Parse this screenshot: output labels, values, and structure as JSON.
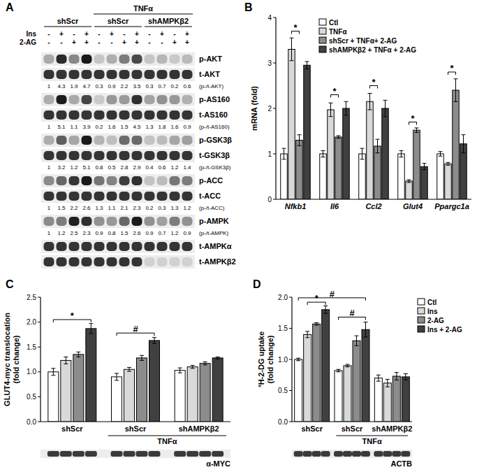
{
  "blot": {
    "label": "A",
    "treatment": {
      "label": "TNFα",
      "groups": [
        1,
        2
      ]
    },
    "groups": [
      "shScr",
      "shScr",
      "shAMPKβ2"
    ],
    "conditions": [
      {
        "name": "Ins",
        "signs": [
          "-",
          "+",
          "-",
          "+",
          "-",
          "+",
          "-",
          "+",
          "-",
          "+",
          "-",
          "+"
        ]
      },
      {
        "name": "2-AG",
        "signs": [
          "-",
          "-",
          "+",
          "+",
          "-",
          "-",
          "+",
          "+",
          "-",
          "-",
          "+",
          "+"
        ]
      }
    ],
    "rows": [
      {
        "type": "band",
        "label": "p-AKT"
      },
      {
        "type": "band",
        "label": "t-AKT"
      },
      {
        "type": "quant",
        "label": "(p-/t-AKT)",
        "values": [
          1,
          4.3,
          1.9,
          4.7,
          0.3,
          0.9,
          2.2,
          3.5,
          0.3,
          0.7,
          0.2,
          0.6
        ]
      },
      {
        "type": "band",
        "label": "p-AS160"
      },
      {
        "type": "band",
        "label": "t-AS160"
      },
      {
        "type": "quant",
        "label": "(p-/t-AS160)",
        "values": [
          1,
          5.1,
          1.1,
          3.9,
          0.2,
          1.6,
          1.5,
          4.5,
          1.3,
          1.8,
          1.6,
          0.9
        ]
      },
      {
        "type": "band",
        "label": "p-GSK3β"
      },
      {
        "type": "band",
        "label": "t-GSK3β"
      },
      {
        "type": "quant",
        "label": "(p-/t-GSK3β)",
        "values": [
          1,
          3.2,
          1.2,
          5.1,
          0.8,
          0.5,
          2.8,
          2.9,
          0.4,
          0.6,
          1.2,
          1.4
        ]
      },
      {
        "type": "band",
        "label": "p-ACC"
      },
      {
        "type": "band",
        "label": "t-ACC"
      },
      {
        "type": "quant",
        "label": "(p-/t-ACC)",
        "values": [
          1,
          1.5,
          2.2,
          2.6,
          1.3,
          1.1,
          2.1,
          2.3,
          0.2,
          0.3,
          1.3,
          1.2
        ]
      },
      {
        "type": "band",
        "label": "p-AMPK"
      },
      {
        "type": "quant",
        "label": "(p-/t-AMPK)",
        "values": [
          1,
          1.2,
          2.5,
          2.3,
          0.9,
          0.8,
          1.5,
          2.6,
          0.9,
          0.7,
          1.2,
          0.9
        ]
      },
      {
        "type": "band",
        "label": "t-AMPKα"
      },
      {
        "type": "band",
        "label": "t-AMPKβ2"
      }
    ]
  },
  "chart_data": [
    {
      "type": "bar",
      "label": "B",
      "ylabel": [
        "mRNA (fold)"
      ],
      "categories": [
        "Nfkb1",
        "Il6",
        "Ccl2",
        "Glut4",
        "Ppargc1a"
      ],
      "ylim": [
        0,
        4
      ],
      "yticks": [
        0,
        1,
        2,
        3,
        4
      ],
      "legend": "top",
      "series": [
        {
          "name": "Ctl",
          "color": "#ffffff",
          "values": [
            1.0,
            1.0,
            1.0,
            1.0,
            1.0
          ],
          "errors": [
            0.12,
            0.07,
            0.12,
            0.07,
            0.05
          ]
        },
        {
          "name": "TNFα",
          "color": "#d9d9d9",
          "values": [
            3.3,
            1.97,
            2.15,
            0.4,
            0.78
          ],
          "errors": [
            0.25,
            0.15,
            0.18,
            0.03,
            0.03
          ]
        },
        {
          "name": "shScr + TNFα+ 2-AG",
          "color": "#8c8c8c",
          "values": [
            1.3,
            1.37,
            1.17,
            1.52,
            2.4
          ],
          "errors": [
            0.12,
            0.03,
            0.15,
            0.05,
            0.25
          ]
        },
        {
          "name": "shAMPKβ2 + TNFα + 2-AG",
          "color": "#404040",
          "values": [
            2.95,
            2.0,
            2.0,
            0.72,
            1.22
          ],
          "errors": [
            0.08,
            0.15,
            0.18,
            0.07,
            0.2
          ]
        }
      ],
      "annotations": [
        {
          "text": "*",
          "from": [
            0,
            1
          ],
          "to": [
            0,
            2
          ],
          "y": 3.7
        },
        {
          "text": "*",
          "from": [
            1,
            1
          ],
          "to": [
            1,
            2
          ],
          "y": 2.3
        },
        {
          "text": "*",
          "from": [
            2,
            1
          ],
          "to": [
            2,
            2
          ],
          "y": 2.5
        },
        {
          "text": "*",
          "from": [
            3,
            1
          ],
          "to": [
            3,
            2
          ],
          "y": 1.7
        },
        {
          "text": "*",
          "from": [
            4,
            1
          ],
          "to": [
            4,
            2
          ],
          "y": 2.8
        }
      ]
    },
    {
      "type": "bar",
      "label": "C",
      "ylabel": [
        "GLUT4-myc translocation",
        "(fold change)"
      ],
      "categories": [
        "shScr",
        "shScr",
        "shAMPKβ2"
      ],
      "category_group": {
        "label": "TNFα",
        "categories": [
          1,
          2
        ]
      },
      "ylim": [
        0,
        2.5
      ],
      "yticks": [
        {
          "value": 0,
          "label": "0.0"
        },
        {
          "value": 0.5,
          "label": "0.5"
        },
        {
          "value": 1,
          "label": "1.0"
        },
        {
          "value": 1.5,
          "label": "1.5"
        },
        {
          "value": 2,
          "label": "2.0"
        },
        {
          "value": 2.5,
          "label": "2.5"
        }
      ],
      "series": [
        {
          "name": "Ctl",
          "color": "#ffffff",
          "values": [
            1.0,
            0.9,
            1.03
          ],
          "errors": [
            0.07,
            0.07,
            0.05
          ]
        },
        {
          "name": "Ins",
          "color": "#d9d9d9",
          "values": [
            1.23,
            1.05,
            1.1
          ],
          "errors": [
            0.07,
            0.04,
            0.03
          ]
        },
        {
          "name": "2-AG",
          "color": "#8c8c8c",
          "values": [
            1.35,
            1.28,
            1.17
          ],
          "errors": [
            0.05,
            0.05,
            0.03
          ]
        },
        {
          "name": "Ins + 2-AG",
          "color": "#404040",
          "values": [
            1.87,
            1.63,
            1.28
          ],
          "errors": [
            0.1,
            0.06,
            0.02
          ]
        }
      ],
      "annotations": [
        {
          "text": "*",
          "from": [
            0,
            0
          ],
          "to": [
            0,
            3
          ],
          "y": 2.05
        },
        {
          "text": "#",
          "from": [
            1,
            0
          ],
          "to": [
            1,
            3
          ],
          "y": 1.78
        }
      ],
      "loading_control": "α-MYC"
    },
    {
      "type": "bar",
      "label": "D",
      "ylabel": [
        "³H-2-DG uptake",
        "(fold change)"
      ],
      "categories": [
        "shScr",
        "shScr",
        "shAMPKβ2"
      ],
      "category_group": {
        "label": "TNFα",
        "categories": [
          1,
          2
        ]
      },
      "ylim": [
        0,
        2
      ],
      "yticks": [
        {
          "value": 0,
          "label": "0.0"
        },
        {
          "value": 0.5,
          "label": "0.5"
        },
        {
          "value": 1,
          "label": "1.0"
        },
        {
          "value": 1.5,
          "label": "1.5"
        },
        {
          "value": 2,
          "label": "2.0"
        }
      ],
      "legend": "right",
      "series": [
        {
          "name": "Ctl",
          "color": "#ffffff",
          "values": [
            1.0,
            0.82,
            0.7
          ],
          "errors": [
            0.02,
            0.02,
            0.05
          ]
        },
        {
          "name": "Ins",
          "color": "#d9d9d9",
          "values": [
            1.4,
            0.9,
            0.62
          ],
          "errors": [
            0.05,
            0.02,
            0.06
          ]
        },
        {
          "name": "2-AG",
          "color": "#8c8c8c",
          "values": [
            1.57,
            1.3,
            0.73
          ],
          "errors": [
            0.02,
            0.08,
            0.06
          ]
        },
        {
          "name": "Ins + 2-AG",
          "color": "#404040",
          "values": [
            1.8,
            1.48,
            0.72
          ],
          "errors": [
            0.06,
            0.12,
            0.05
          ]
        }
      ],
      "annotations": [
        {
          "text": "*",
          "from": [
            0,
            1
          ],
          "to": [
            0,
            3
          ],
          "y": 1.92
        },
        {
          "text": "#",
          "from": [
            0,
            0
          ],
          "to": [
            1,
            3
          ],
          "y": 1.99
        },
        {
          "text": "#",
          "from": [
            1,
            0
          ],
          "to": [
            1,
            3
          ],
          "y": 1.68
        }
      ],
      "loading_control": "ACTB"
    }
  ]
}
